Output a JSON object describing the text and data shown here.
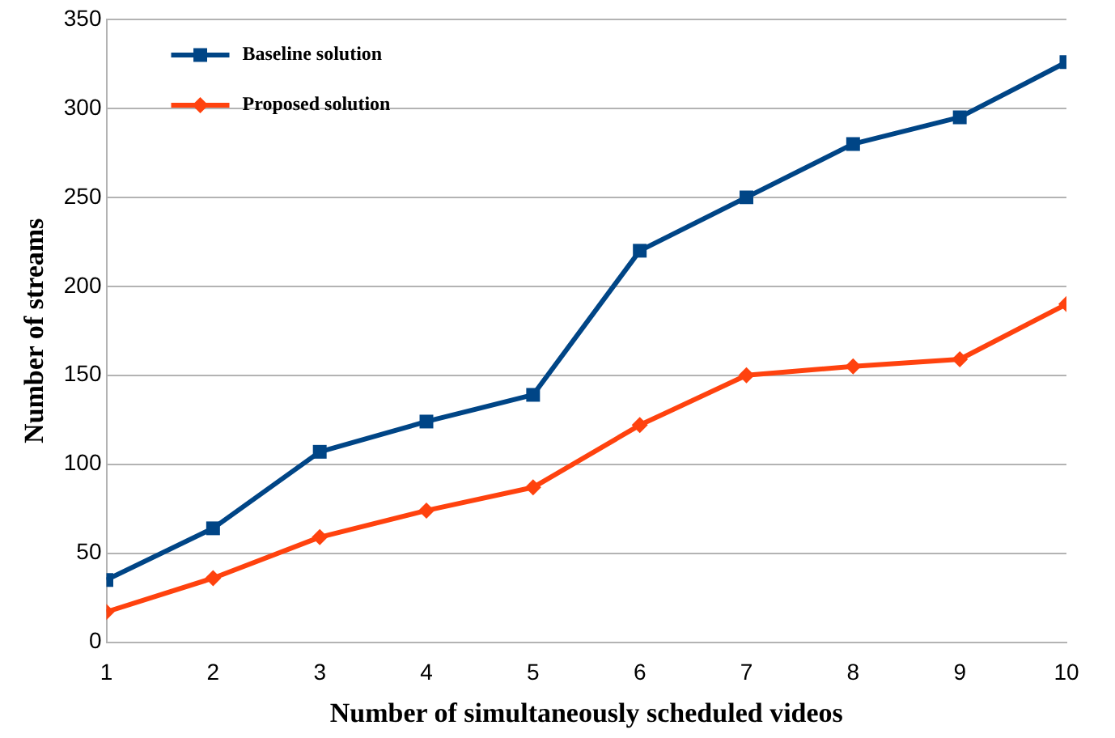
{
  "chart_data": {
    "type": "line",
    "xlabel": "Number of simultaneously scheduled videos",
    "ylabel": "Number of streams",
    "x": [
      1,
      2,
      3,
      4,
      5,
      6,
      7,
      8,
      9,
      10
    ],
    "series": [
      {
        "name": "Baseline solution",
        "color": "#004586",
        "marker": "square",
        "values": [
          35,
          64,
          107,
          124,
          139,
          220,
          250,
          280,
          295,
          326
        ]
      },
      {
        "name": "Proposed solution",
        "color": "#ff420e",
        "marker": "diamond",
        "values": [
          17,
          36,
          59,
          74,
          87,
          122,
          150,
          155,
          159,
          190
        ]
      }
    ],
    "xlim": [
      1,
      10
    ],
    "xticks": [
      1,
      2,
      3,
      4,
      5,
      6,
      7,
      8,
      9,
      10
    ],
    "ylim": [
      0,
      350
    ],
    "yticks": [
      0,
      50,
      100,
      150,
      200,
      250,
      300,
      350
    ],
    "grid": "y",
    "legend": "top left",
    "line_style": "solid"
  }
}
